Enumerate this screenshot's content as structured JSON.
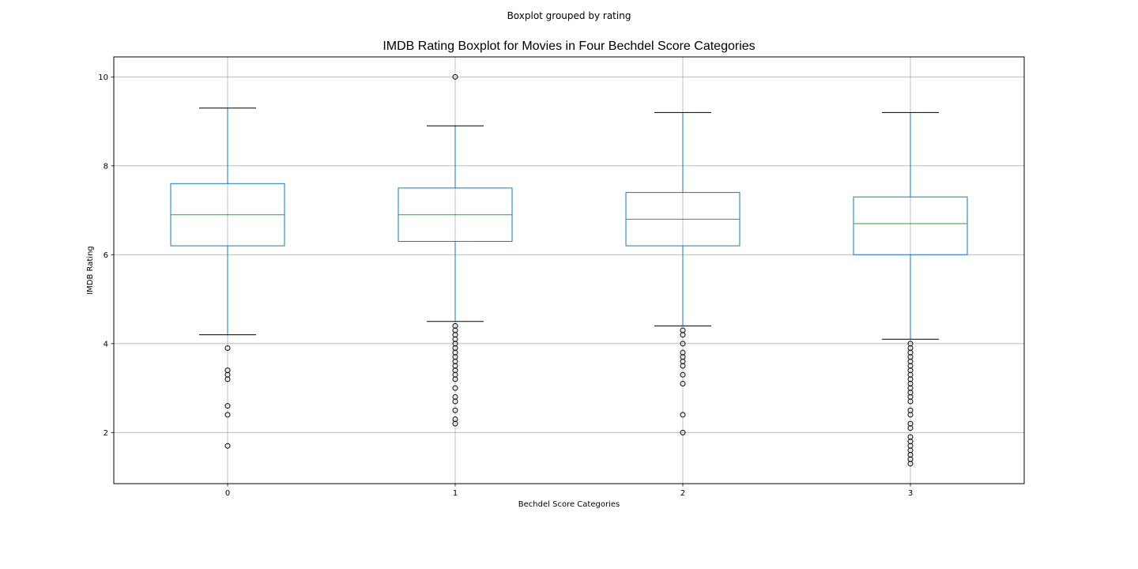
{
  "suptitle": "Boxplot grouped by rating",
  "chart_data": {
    "type": "boxplot",
    "title": "IMDB Rating Boxplot for Movies in Four Bechdel Score Categories",
    "xlabel": "Bechdel Score Categories",
    "ylabel": "IMDB Rating",
    "categories": [
      "0",
      "1",
      "2",
      "3"
    ],
    "ylim": [
      0.85,
      10.45
    ],
    "yticks": [
      2,
      4,
      6,
      8,
      10
    ],
    "ytick_labels": [
      "2",
      "4",
      "6",
      "8",
      "10"
    ],
    "grid": true,
    "colors": {
      "box": "#1f77b4",
      "median": "#2ca02c",
      "whisker": "#1f77b4",
      "cap": "#000000",
      "flier": "#000000",
      "grid": "#b0b0b0"
    },
    "boxes": [
      {
        "category": "0",
        "whisker_low": 4.2,
        "q1": 6.2,
        "median": 6.9,
        "q3": 7.6,
        "whisker_high": 9.3,
        "fliers": [
          3.9,
          3.4,
          3.3,
          3.2,
          2.6,
          2.4,
          1.7
        ]
      },
      {
        "category": "1",
        "whisker_low": 4.5,
        "q1": 6.3,
        "median": 6.9,
        "q3": 7.5,
        "whisker_high": 8.9,
        "fliers": [
          10.0,
          4.4,
          4.3,
          4.2,
          4.1,
          4.0,
          3.9,
          3.8,
          3.7,
          3.6,
          3.5,
          3.4,
          3.3,
          3.2,
          3.0,
          2.8,
          2.7,
          2.5,
          2.3,
          2.2
        ]
      },
      {
        "category": "2",
        "whisker_low": 4.4,
        "q1": 6.2,
        "median": 6.8,
        "q3": 7.4,
        "whisker_high": 9.2,
        "fliers": [
          4.3,
          4.2,
          4.0,
          3.8,
          3.7,
          3.6,
          3.5,
          3.3,
          3.1,
          2.4,
          2.0
        ]
      },
      {
        "category": "3",
        "whisker_low": 4.1,
        "q1": 6.0,
        "median": 6.7,
        "q3": 7.3,
        "whisker_high": 9.2,
        "fliers": [
          4.0,
          3.9,
          3.8,
          3.7,
          3.6,
          3.5,
          3.4,
          3.3,
          3.2,
          3.1,
          3.0,
          2.9,
          2.8,
          2.7,
          2.5,
          2.4,
          2.2,
          2.1,
          1.9,
          1.8,
          1.7,
          1.6,
          1.5,
          1.4,
          1.3
        ]
      }
    ]
  }
}
